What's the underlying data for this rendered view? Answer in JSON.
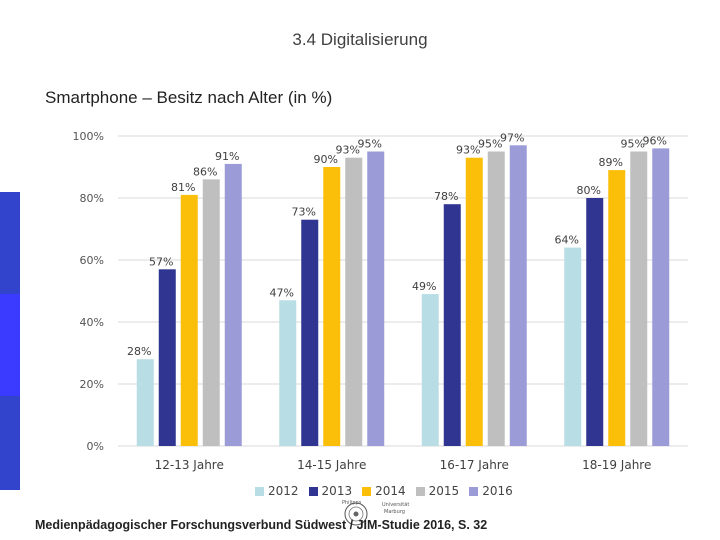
{
  "slide": {
    "header": "3.4 Digitalisierung",
    "subtitle": "Smartphone – Besitz nach Alter (in %)",
    "footer": "Medienpädagogischer Forschungsverbund Südwest / JIM-Studie 2016, S. 32",
    "logo": {
      "left": "Philipps",
      "right_top": "Universität",
      "right_bottom": "Marburg"
    },
    "side_bar_colors": [
      "#3344cc",
      "#3b3bff",
      "#3344cc",
      "#3b3bff"
    ]
  },
  "chart_data": {
    "type": "bar",
    "categories": [
      "12-13 Jahre",
      "14-15 Jahre",
      "16-17 Jahre",
      "18-19 Jahre"
    ],
    "series": [
      {
        "name": "2012",
        "color": "#b8dde4",
        "values": [
          28,
          47,
          49,
          64
        ],
        "labels": [
          "28%",
          "47%",
          "49%",
          "64%"
        ]
      },
      {
        "name": "2013",
        "color": "#2f3590",
        "values": [
          57,
          73,
          78,
          80
        ],
        "labels": [
          "57%",
          "73%",
          "78%",
          "80%"
        ]
      },
      {
        "name": "2014",
        "color": "#fbbf09",
        "values": [
          81,
          90,
          93,
          89
        ],
        "labels": [
          "81%",
          "90%",
          "93%",
          "89%"
        ]
      },
      {
        "name": "2015",
        "color": "#bfbfbf",
        "values": [
          86,
          93,
          95,
          95
        ],
        "labels": [
          "86%",
          "93%",
          "95%",
          "95%"
        ]
      },
      {
        "name": "2016",
        "color": "#9b9bd8",
        "values": [
          91,
          95,
          97,
          96
        ],
        "labels": [
          "91%",
          "95%",
          "97%",
          "96%"
        ]
      }
    ],
    "y_ticks": [
      "0%",
      "20%",
      "40%",
      "60%",
      "80%",
      "100%"
    ],
    "ylim": [
      0,
      100
    ],
    "grid": true,
    "legend": "bottom"
  }
}
